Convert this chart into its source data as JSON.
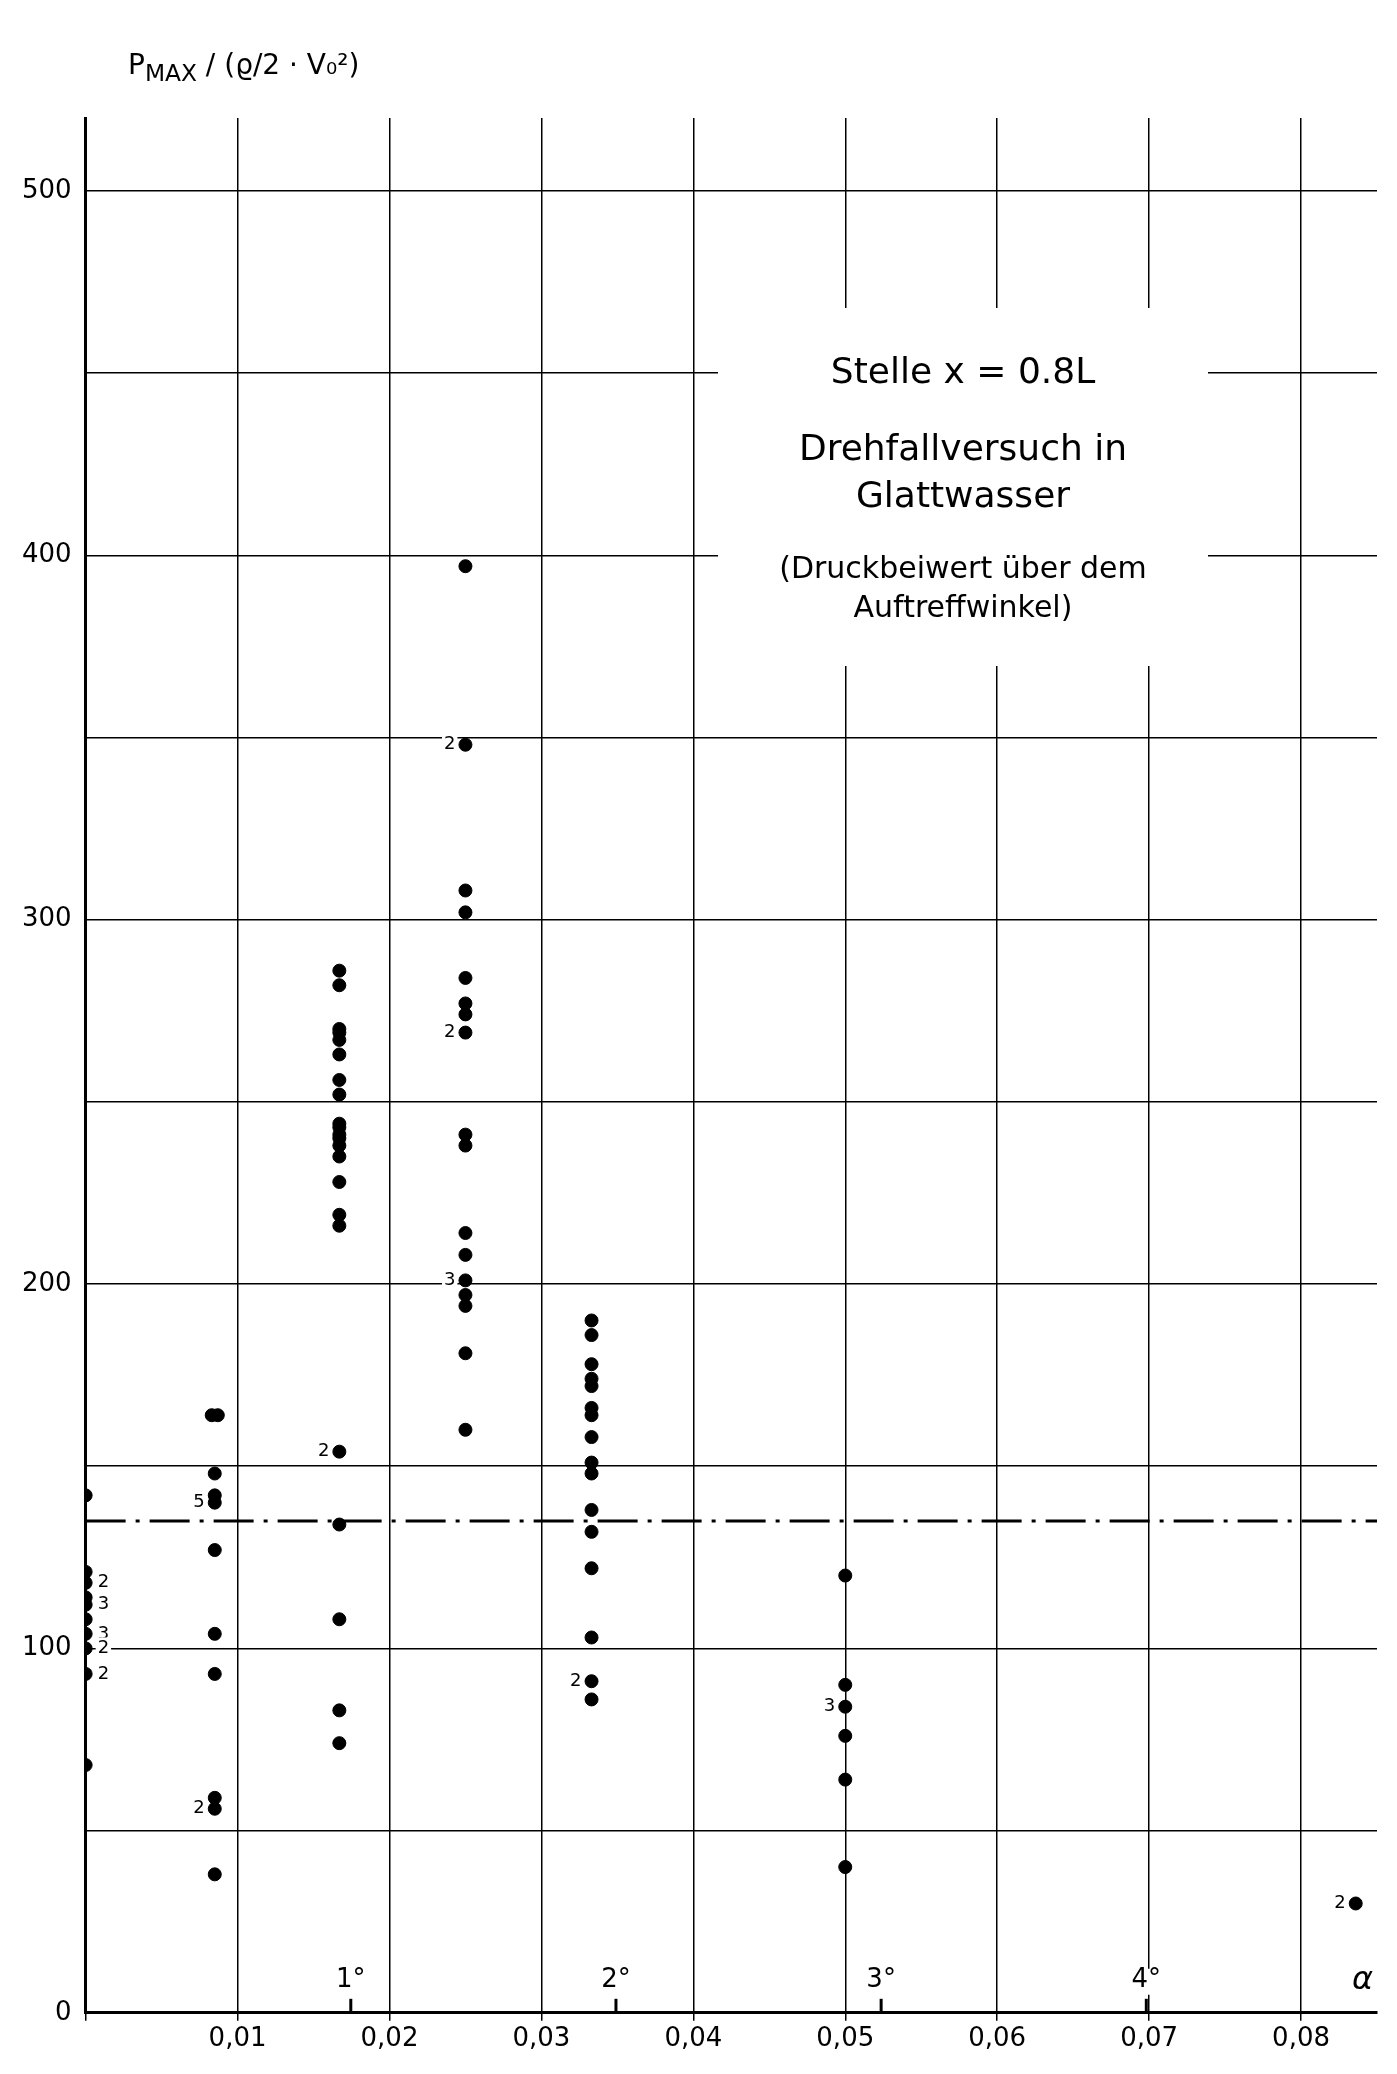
{
  "chart_data": {
    "type": "scatter",
    "title": "Stelle x = 0.8L",
    "subtitle": "Drehfallversuch in Glattwasser",
    "ylabel": "P$_{MAX}$ / (ϱ/2 · V₀²)",
    "xlabel": "α",
    "annotations": [
      "(Druckbeiwert über dem Auftreffwinkel)",
      {
        "text": "2",
        "x": 0,
        "y": 118
      },
      {
        "text": "3",
        "x": 0,
        "y": 112
      },
      {
        "text": "3",
        "x": 0,
        "y": 104
      },
      {
        "text": "2",
        "x": 0,
        "y": 100
      },
      {
        "text": "2",
        "x": 0,
        "y": 93
      },
      {
        "text": "5",
        "x": 0.0085,
        "y": 140
      },
      {
        "text": "2",
        "x": 0.0085,
        "y": 56
      },
      {
        "text": "2",
        "x": 0.0167,
        "y": 154
      },
      {
        "text": "2",
        "x": 0.025,
        "y": 348
      },
      {
        "text": "2",
        "x": 0.025,
        "y": 269
      },
      {
        "text": "3",
        "x": 0.025,
        "y": 201
      },
      {
        "text": "2",
        "x": 0.0333,
        "y": 91
      },
      {
        "text": "3",
        "x": 0.05,
        "y": 84
      },
      {
        "text": "2",
        "x": 0.0836,
        "y": 30
      }
    ],
    "x": [
      0,
      0,
      0,
      0,
      0,
      0,
      0,
      0,
      0,
      0,
      0.0083,
      0.0087,
      0.0085,
      0.0085,
      0.0085,
      0.0085,
      0.0085,
      0.0085,
      0.0085,
      0.0085,
      0.0085,
      0.0167,
      0.0167,
      0.0167,
      0.0167,
      0.0167,
      0.0167,
      0.0167,
      0.0167,
      0.0167,
      0.0167,
      0.0167,
      0.0167,
      0.0167,
      0.0167,
      0.0167,
      0.0167,
      0.0167,
      0.0167,
      0.0167,
      0.0167,
      0.0167,
      0.0167,
      0.025,
      0.025,
      0.025,
      0.025,
      0.025,
      0.025,
      0.025,
      0.025,
      0.025,
      0.025,
      0.025,
      0.025,
      0.025,
      0.025,
      0.025,
      0.025,
      0.025,
      0.0333,
      0.0333,
      0.0333,
      0.0333,
      0.0333,
      0.0333,
      0.0333,
      0.0333,
      0.0333,
      0.0333,
      0.0333,
      0.0333,
      0.0333,
      0.0333,
      0.0333,
      0.0333,
      0.05,
      0.05,
      0.05,
      0.05,
      0.05,
      0.05,
      0.0836
    ],
    "series": [
      {
        "color": "#000000",
        "values": [
          142,
          121,
          118,
          114,
          112,
          108,
          104,
          100,
          93,
          68,
          164,
          164,
          148,
          142,
          140,
          127,
          104,
          93,
          59,
          56,
          38,
          286,
          282,
          270,
          269,
          267,
          263,
          256,
          252,
          244,
          243,
          241,
          240,
          238,
          235,
          228,
          219,
          216,
          154,
          134,
          108,
          83,
          74,
          397,
          348,
          308,
          302,
          284,
          277,
          274,
          269,
          241,
          238,
          214,
          208,
          201,
          197,
          194,
          181,
          160,
          190,
          186,
          178,
          174,
          172,
          166,
          164,
          158,
          151,
          148,
          138,
          132,
          122,
          103,
          91,
          86,
          120,
          90,
          84,
          76,
          64,
          40,
          30
        ]
      }
    ],
    "xlim": [
      0,
      0.085
    ],
    "xticks": [
      {
        "value": 0,
        "label": null
      },
      {
        "value": 0.01,
        "label": "0,01"
      },
      {
        "value": 0.02,
        "label": "0,02"
      },
      {
        "value": 0.03,
        "label": "0,03"
      },
      {
        "value": 0.04,
        "label": "0,04"
      },
      {
        "value": 0.05,
        "label": "0,05"
      },
      {
        "value": 0.06,
        "label": "0,06"
      },
      {
        "value": 0.07,
        "label": "0,07"
      },
      {
        "value": 0.08,
        "label": "0,08"
      }
    ],
    "x2lim": [
      0,
      4.87
    ],
    "x2ticks": [
      {
        "value": 1,
        "label": "1°"
      },
      {
        "value": 2,
        "label": "2°"
      },
      {
        "value": 3,
        "label": "3°"
      },
      {
        "value": 4,
        "label": "4°"
      }
    ],
    "ylim": [
      0,
      520
    ],
    "yticks": [
      0,
      {
        "value": 50,
        "label": null
      },
      100,
      {
        "value": 150,
        "label": null
      },
      200,
      {
        "value": 250,
        "label": null
      },
      300,
      {
        "value": 350,
        "label": null
      },
      400,
      {
        "value": 450,
        "label": null
      },
      500
    ],
    "ref_lines": [
      {
        "axis": "y",
        "value": 135,
        "color": "#000000",
        "line_style": "dashed"
      }
    ],
    "grid": true,
    "legend": false,
    "marker": "circle"
  }
}
